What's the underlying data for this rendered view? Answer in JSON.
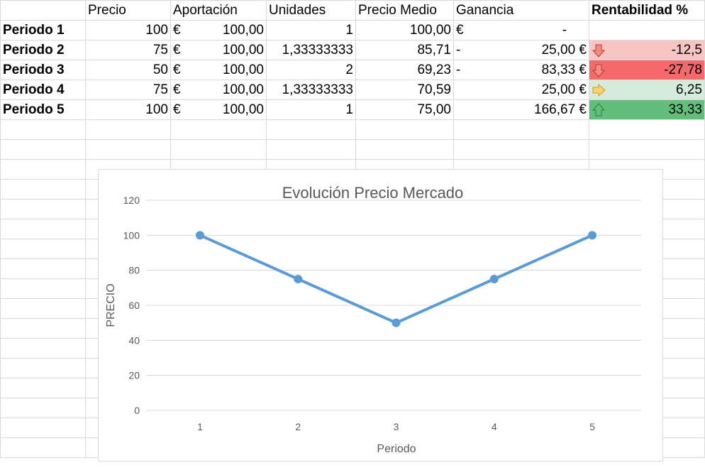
{
  "headers": {
    "precio": "Precio",
    "aportacion": "Aportación",
    "unidades": "Unidades",
    "precio_medio": "Precio Medio",
    "ganancia": "Ganancia",
    "rentabilidad": "Rentabilidad %"
  },
  "rows": [
    {
      "periodo": "Periodo 1",
      "precio": "100",
      "aport_sym": "€",
      "aport_val": "100,00",
      "unidades": "1",
      "precio_medio": "100,00",
      "gan_left": "€",
      "gan_right": "-",
      "rent": "",
      "arrow": "none",
      "rent_color": "#ffffff"
    },
    {
      "periodo": "Periodo 2",
      "precio": "75",
      "aport_sym": "€",
      "aport_val": "100,00",
      "unidades": "1,33333333",
      "precio_medio": "85,71",
      "gan_left": "-",
      "gan_right": "25,00 €",
      "rent": "-12,5",
      "arrow": "down",
      "rent_color": "#f8c4c4"
    },
    {
      "periodo": "Periodo 3",
      "precio": "50",
      "aport_sym": "€",
      "aport_val": "100,00",
      "unidades": "2",
      "precio_medio": "69,23",
      "gan_left": "-",
      "gan_right": "83,33 €",
      "rent": "-27,78",
      "arrow": "down",
      "rent_color": "#f4696b"
    },
    {
      "periodo": "Periodo 4",
      "precio": "75",
      "aport_sym": "€",
      "aport_val": "100,00",
      "unidades": "1,33333333",
      "precio_medio": "70,59",
      "gan_left": "",
      "gan_right": "25,00 €",
      "rent": "6,25",
      "arrow": "right",
      "rent_color": "#d5ecdc"
    },
    {
      "periodo": "Periodo 5",
      "precio": "100",
      "aport_sym": "€",
      "aport_val": "100,00",
      "unidades": "1",
      "precio_medio": "75,00",
      "gan_left": "",
      "gan_right": "166,67 €",
      "rent": "33,33",
      "arrow": "up",
      "rent_color": "#63be7b"
    }
  ],
  "chart_data": {
    "type": "line",
    "title": "Evolución Precio Mercado",
    "xlabel": "Periodo",
    "ylabel": "PRECIO",
    "x": [
      1,
      2,
      3,
      4,
      5
    ],
    "series": [
      {
        "values": [
          100,
          75,
          50,
          75,
          100
        ],
        "color": "#5b9bd5"
      }
    ],
    "ylim": [
      0,
      120
    ],
    "yticks": [
      0,
      20,
      40,
      60,
      80,
      100,
      120
    ],
    "grid": true
  }
}
